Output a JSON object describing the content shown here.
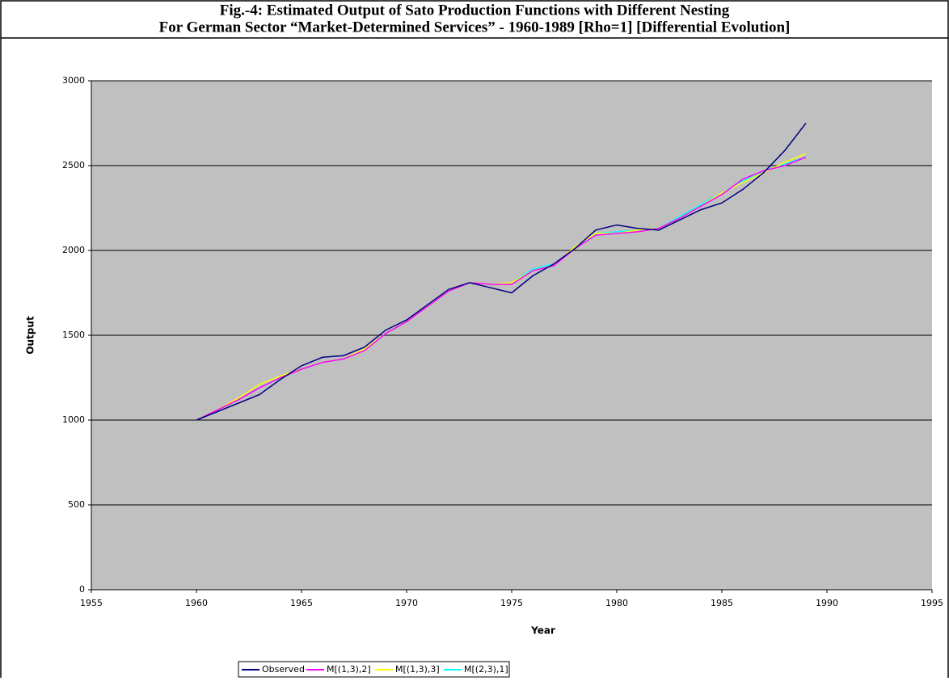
{
  "chart_data": {
    "type": "line",
    "title": "Fig.-4: Estimated Output of Sato Production Functions with Different Nesting",
    "subtitle": "For German Sector “Market-Determined Services” - 1960-1989 [Rho=1] [Differential Evolution]",
    "x_label": "Year",
    "y_label": "Output",
    "x": [
      1960,
      1961,
      1962,
      1963,
      1964,
      1965,
      1966,
      1967,
      1968,
      1969,
      1970,
      1971,
      1972,
      1973,
      1974,
      1975,
      1976,
      1977,
      1978,
      1979,
      1980,
      1981,
      1982,
      1983,
      1984,
      1985,
      1986,
      1987,
      1988,
      1989
    ],
    "series": [
      {
        "name": "Observed",
        "color": "#000080",
        "values": [
          1000,
          1050,
          1100,
          1150,
          1240,
          1320,
          1370,
          1380,
          1430,
          1530,
          1590,
          1680,
          1770,
          1810,
          1780,
          1750,
          1850,
          1920,
          2010,
          2120,
          2150,
          2130,
          2120,
          2180,
          2240,
          2280,
          2360,
          2460,
          2590,
          2750
        ]
      },
      {
        "name": "M[(1,3),2]",
        "color": "#ff00ff",
        "values": [
          1000,
          1060,
          1120,
          1190,
          1250,
          1300,
          1340,
          1360,
          1410,
          1510,
          1580,
          1670,
          1760,
          1810,
          1800,
          1800,
          1880,
          1910,
          2010,
          2090,
          2100,
          2110,
          2130,
          2190,
          2260,
          2330,
          2420,
          2470,
          2500,
          2550
        ]
      },
      {
        "name": "M[(1,3),3]",
        "color": "#ffff00",
        "values": [
          1000,
          1060,
          1130,
          1210,
          1260,
          1300,
          1340,
          1360,
          1420,
          1510,
          1580,
          1670,
          1760,
          1810,
          1800,
          1810,
          1880,
          1910,
          2020,
          2100,
          2100,
          2120,
          2130,
          2190,
          2260,
          2340,
          2400,
          2460,
          2520,
          2570
        ]
      },
      {
        "name": "M[(2,3),1]",
        "color": "#00ffff",
        "values": [
          1000,
          1060,
          1120,
          1190,
          1250,
          1300,
          1340,
          1360,
          1420,
          1510,
          1580,
          1670,
          1760,
          1810,
          1800,
          1810,
          1890,
          1920,
          2010,
          2100,
          2110,
          2120,
          2130,
          2200,
          2270,
          2340,
          2410,
          2470,
          2510,
          2550
        ]
      }
    ],
    "xlim": [
      1955,
      1995
    ],
    "xticks": [
      1955,
      1960,
      1965,
      1970,
      1975,
      1980,
      1985,
      1990,
      1995
    ],
    "ylim": [
      0,
      3000
    ],
    "yticks": [
      0,
      500,
      1000,
      1500,
      2000,
      2500,
      3000
    ],
    "grid": true,
    "plot_background": "#c0c0c0",
    "legend_position": "bottom"
  }
}
